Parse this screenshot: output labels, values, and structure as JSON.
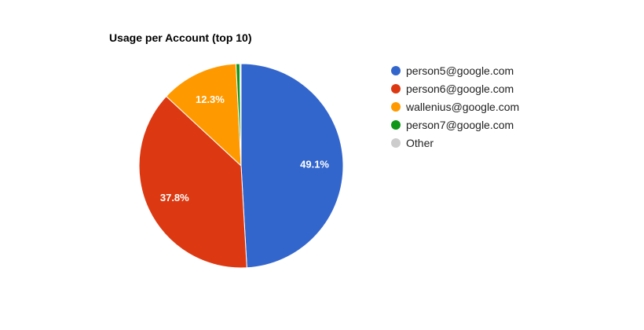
{
  "chart_data": {
    "type": "pie",
    "title": "Usage per Account (top 10)",
    "categories": [
      "person5@google.com",
      "person6@google.com",
      "wallenius@google.com",
      "person7@google.com",
      "Other"
    ],
    "values": [
      49.1,
      37.8,
      12.3,
      0.6,
      0.2
    ],
    "slice_labels": [
      "49.1%",
      "37.8%",
      "12.3%",
      "",
      ""
    ],
    "colors": [
      "#3366cc",
      "#dc3912",
      "#ff9900",
      "#109618",
      "#cccccc"
    ],
    "legend_position": "right",
    "start_angle_deg": 0,
    "direction": "clockwise"
  }
}
